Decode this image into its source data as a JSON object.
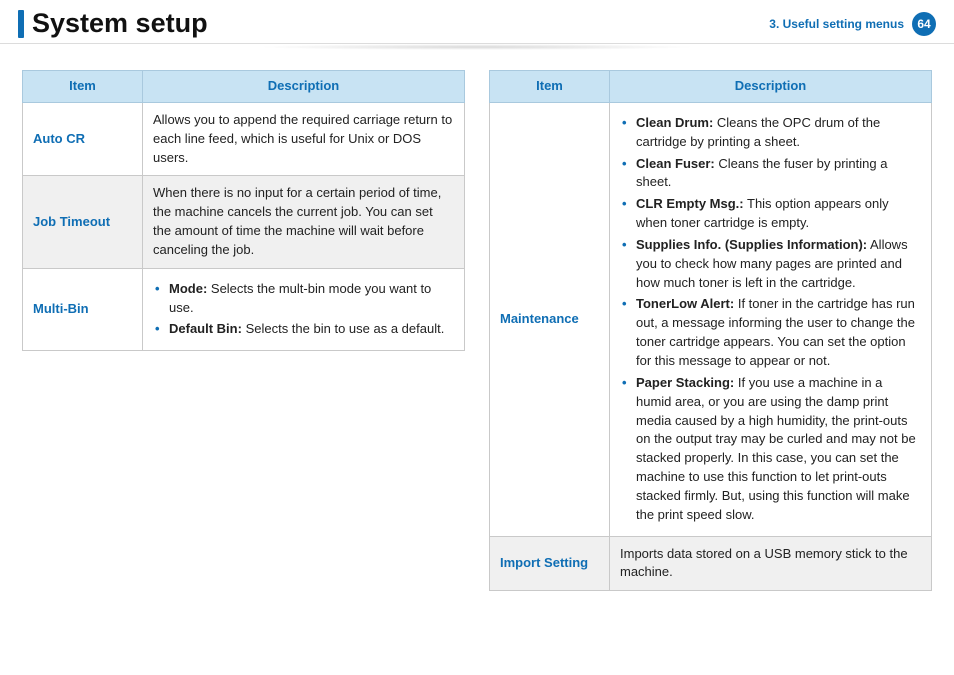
{
  "header": {
    "title": "System setup",
    "chapter": "3.  Useful setting menus",
    "page": "64"
  },
  "table_left": {
    "col_item": "Item",
    "col_desc": "Description",
    "rows": [
      {
        "item": "Auto CR",
        "desc": "Allows you to append the required carriage return to each line feed, which is useful for Unix or DOS users."
      },
      {
        "item": "Job Timeout",
        "desc": "When there is no input for a certain period of time, the machine cancels the current job. You can set the amount of time the machine will wait before canceling the job."
      },
      {
        "item": "Multi-Bin",
        "bullets": [
          {
            "b": "Mode:",
            "t": " Selects the mult-bin mode you want to use."
          },
          {
            "b": "Default Bin:",
            "t": " Selects the bin to use as a default."
          }
        ]
      }
    ]
  },
  "table_right": {
    "col_item": "Item",
    "col_desc": "Description",
    "rows": [
      {
        "item": "Maintenance",
        "bullets": [
          {
            "b": "Clean Drum:",
            "t": " Cleans the OPC drum of the cartridge by printing a sheet."
          },
          {
            "b": "Clean Fuser:",
            "t": " Cleans the fuser by printing a sheet."
          },
          {
            "b": "CLR Empty Msg.:",
            "t": "  This option appears only when toner cartridge is empty."
          },
          {
            "b": "Supplies Info. (Supplies Information):",
            "t": " Allows you to check how many pages are printed and how much toner is left in the cartridge."
          },
          {
            "b": "TonerLow Alert:",
            "t": " If toner in the cartridge has run out, a message informing the user to change the toner cartridge appears. You can set the option for this message to appear or not."
          },
          {
            "b": "Paper Stacking:",
            "t": " If you use a machine in a humid area, or you are using the damp print media caused by a high humidity, the print-outs on the output tray may be curled and may not be stacked properly. In this case, you can set the machine to use this function to let print-outs stacked firmly. But, using this function will make the print speed slow."
          }
        ]
      },
      {
        "item": "Import Setting",
        "desc": "Imports data stored on a USB memory stick to the machine."
      }
    ]
  }
}
